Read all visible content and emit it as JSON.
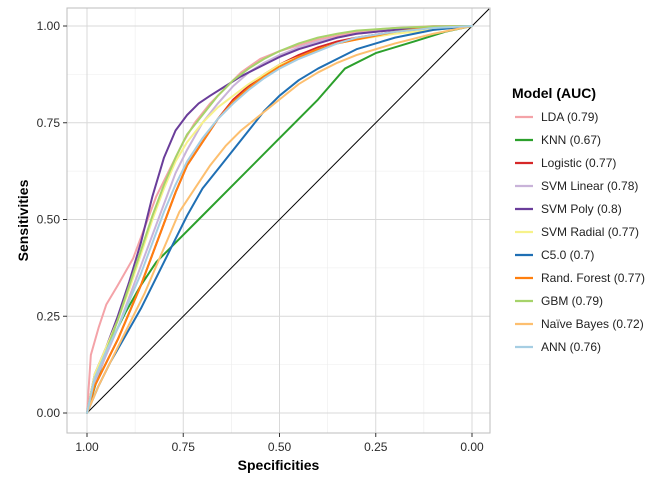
{
  "chart_data": {
    "type": "line",
    "subtype": "ROC curves",
    "title": "",
    "xlabel": "Specificities",
    "ylabel": "Sensitivities",
    "xlim": [
      1.0,
      0.0
    ],
    "ylim": [
      0.0,
      1.0
    ],
    "x_reversed": true,
    "x_ticks": [
      1.0,
      0.75,
      0.5,
      0.25,
      0.0
    ],
    "x_tick_labels": [
      "1.00",
      "0.75",
      "0.50",
      "0.25",
      "0.00"
    ],
    "y_ticks": [
      0.0,
      0.25,
      0.5,
      0.75,
      1.0
    ],
    "y_tick_labels": [
      "0.00",
      "0.25",
      "0.50",
      "0.75",
      "1.00"
    ],
    "grid": true,
    "panel_border": true,
    "diagonal_reference_line": {
      "from": [
        1.0,
        0.0
      ],
      "to": [
        0.0,
        1.0
      ],
      "color": "#000000"
    },
    "legend": {
      "title": "Model (AUC)",
      "position": "right"
    },
    "series": [
      {
        "name": "LDA (0.79)",
        "color": "#F4A3A8",
        "x": [
          1.0,
          0.99,
          0.97,
          0.95,
          0.92,
          0.88,
          0.85,
          0.82,
          0.78,
          0.75,
          0.72,
          0.68,
          0.64,
          0.6,
          0.55,
          0.5,
          0.45,
          0.4,
          0.35,
          0.3,
          0.25,
          0.2,
          0.15,
          0.1,
          0.0
        ],
        "y": [
          0.0,
          0.15,
          0.22,
          0.28,
          0.33,
          0.4,
          0.48,
          0.56,
          0.64,
          0.7,
          0.75,
          0.8,
          0.84,
          0.88,
          0.915,
          0.935,
          0.95,
          0.965,
          0.975,
          0.985,
          0.99,
          0.995,
          0.997,
          1.0,
          1.0
        ]
      },
      {
        "name": "KNN (0.67)",
        "color": "#2CA02C",
        "x": [
          1.0,
          0.97,
          0.94,
          0.9,
          0.86,
          0.82,
          0.78,
          0.7,
          0.6,
          0.5,
          0.4,
          0.33,
          0.25,
          0.15,
          0.07,
          0.0
        ],
        "y": [
          0.0,
          0.1,
          0.18,
          0.26,
          0.33,
          0.39,
          0.43,
          0.51,
          0.61,
          0.71,
          0.81,
          0.89,
          0.93,
          0.96,
          0.985,
          1.0
        ]
      },
      {
        "name": "Logistic (0.77)",
        "color": "#D62728",
        "x": [
          1.0,
          0.98,
          0.95,
          0.92,
          0.89,
          0.86,
          0.83,
          0.8,
          0.77,
          0.74,
          0.7,
          0.66,
          0.62,
          0.58,
          0.54,
          0.5,
          0.45,
          0.4,
          0.35,
          0.3,
          0.2,
          0.1,
          0.0
        ],
        "y": [
          0.0,
          0.07,
          0.13,
          0.19,
          0.26,
          0.33,
          0.41,
          0.49,
          0.57,
          0.64,
          0.7,
          0.76,
          0.81,
          0.845,
          0.875,
          0.9,
          0.925,
          0.945,
          0.96,
          0.97,
          0.985,
          0.995,
          1.0
        ]
      },
      {
        "name": "SVM Linear (0.78)",
        "color": "#C9B3D9",
        "x": [
          1.0,
          0.98,
          0.95,
          0.92,
          0.89,
          0.86,
          0.83,
          0.8,
          0.77,
          0.74,
          0.7,
          0.66,
          0.62,
          0.58,
          0.54,
          0.5,
          0.45,
          0.4,
          0.35,
          0.3,
          0.2,
          0.1,
          0.0
        ],
        "y": [
          0.0,
          0.08,
          0.15,
          0.22,
          0.3,
          0.38,
          0.46,
          0.54,
          0.62,
          0.68,
          0.75,
          0.8,
          0.845,
          0.88,
          0.905,
          0.925,
          0.945,
          0.96,
          0.97,
          0.98,
          0.99,
          0.997,
          1.0
        ]
      },
      {
        "name": "SVM Poly (0.8)",
        "color": "#6A3D9A",
        "x": [
          1.0,
          0.98,
          0.95,
          0.92,
          0.89,
          0.86,
          0.83,
          0.8,
          0.77,
          0.74,
          0.71,
          0.68,
          0.64,
          0.6,
          0.55,
          0.5,
          0.45,
          0.4,
          0.35,
          0.3,
          0.2,
          0.1,
          0.0
        ],
        "y": [
          0.0,
          0.1,
          0.17,
          0.25,
          0.34,
          0.44,
          0.56,
          0.66,
          0.73,
          0.77,
          0.8,
          0.82,
          0.845,
          0.87,
          0.895,
          0.92,
          0.94,
          0.955,
          0.97,
          0.98,
          0.99,
          0.997,
          1.0
        ]
      },
      {
        "name": "SVM Radial (0.77)",
        "color": "#F7F28A",
        "x": [
          1.0,
          0.98,
          0.95,
          0.92,
          0.89,
          0.86,
          0.83,
          0.8,
          0.77,
          0.74,
          0.7,
          0.66,
          0.62,
          0.58,
          0.54,
          0.5,
          0.45,
          0.4,
          0.35,
          0.3,
          0.2,
          0.1,
          0.0
        ],
        "y": [
          0.0,
          0.1,
          0.17,
          0.24,
          0.32,
          0.41,
          0.5,
          0.58,
          0.65,
          0.7,
          0.75,
          0.79,
          0.82,
          0.85,
          0.875,
          0.9,
          0.92,
          0.94,
          0.955,
          0.965,
          0.98,
          0.99,
          1.0
        ]
      },
      {
        "name": "C5.0 (0.7)",
        "color": "#1F6FB4",
        "x": [
          1.0,
          0.97,
          0.94,
          0.9,
          0.86,
          0.82,
          0.78,
          0.74,
          0.7,
          0.66,
          0.62,
          0.58,
          0.54,
          0.5,
          0.45,
          0.4,
          0.35,
          0.3,
          0.25,
          0.2,
          0.1,
          0.0
        ],
        "y": [
          0.0,
          0.07,
          0.13,
          0.2,
          0.27,
          0.35,
          0.43,
          0.51,
          0.58,
          0.63,
          0.68,
          0.73,
          0.78,
          0.82,
          0.86,
          0.89,
          0.915,
          0.94,
          0.955,
          0.97,
          0.99,
          1.0
        ]
      },
      {
        "name": "Rand. Forest (0.77)",
        "color": "#FF7F0E",
        "x": [
          1.0,
          0.98,
          0.95,
          0.92,
          0.89,
          0.86,
          0.83,
          0.8,
          0.77,
          0.74,
          0.7,
          0.66,
          0.62,
          0.58,
          0.54,
          0.5,
          0.45,
          0.4,
          0.35,
          0.3,
          0.2,
          0.1,
          0.0
        ],
        "y": [
          0.0,
          0.07,
          0.13,
          0.19,
          0.26,
          0.33,
          0.41,
          0.49,
          0.57,
          0.64,
          0.7,
          0.76,
          0.805,
          0.84,
          0.87,
          0.895,
          0.92,
          0.94,
          0.955,
          0.965,
          0.985,
          0.998,
          1.0
        ]
      },
      {
        "name": "GBM (0.79)",
        "color": "#A6D36A",
        "x": [
          1.0,
          0.98,
          0.95,
          0.92,
          0.89,
          0.86,
          0.83,
          0.8,
          0.77,
          0.74,
          0.7,
          0.66,
          0.62,
          0.58,
          0.54,
          0.5,
          0.45,
          0.4,
          0.35,
          0.3,
          0.2,
          0.1,
          0.0
        ],
        "y": [
          0.0,
          0.09,
          0.16,
          0.24,
          0.33,
          0.42,
          0.51,
          0.59,
          0.66,
          0.72,
          0.77,
          0.82,
          0.86,
          0.89,
          0.915,
          0.935,
          0.955,
          0.97,
          0.98,
          0.988,
          0.995,
          0.999,
          1.0
        ]
      },
      {
        "name": "Naïve Bayes (0.72)",
        "color": "#FDBF6F",
        "x": [
          1.0,
          0.97,
          0.94,
          0.91,
          0.88,
          0.85,
          0.82,
          0.79,
          0.76,
          0.72,
          0.68,
          0.64,
          0.6,
          0.55,
          0.5,
          0.45,
          0.4,
          0.35,
          0.3,
          0.2,
          0.1,
          0.0
        ],
        "y": [
          0.0,
          0.07,
          0.13,
          0.19,
          0.25,
          0.31,
          0.38,
          0.45,
          0.52,
          0.58,
          0.64,
          0.69,
          0.73,
          0.77,
          0.81,
          0.85,
          0.88,
          0.905,
          0.925,
          0.955,
          0.98,
          1.0
        ]
      },
      {
        "name": "ANN (0.76)",
        "color": "#A6CEE3",
        "x": [
          1.0,
          0.98,
          0.95,
          0.92,
          0.89,
          0.86,
          0.83,
          0.8,
          0.77,
          0.74,
          0.7,
          0.66,
          0.62,
          0.58,
          0.54,
          0.5,
          0.45,
          0.4,
          0.35,
          0.3,
          0.2,
          0.1,
          0.0
        ],
        "y": [
          0.0,
          0.09,
          0.16,
          0.22,
          0.29,
          0.36,
          0.44,
          0.52,
          0.59,
          0.65,
          0.71,
          0.76,
          0.8,
          0.835,
          0.865,
          0.89,
          0.915,
          0.935,
          0.955,
          0.97,
          0.985,
          0.995,
          1.0
        ]
      }
    ]
  }
}
